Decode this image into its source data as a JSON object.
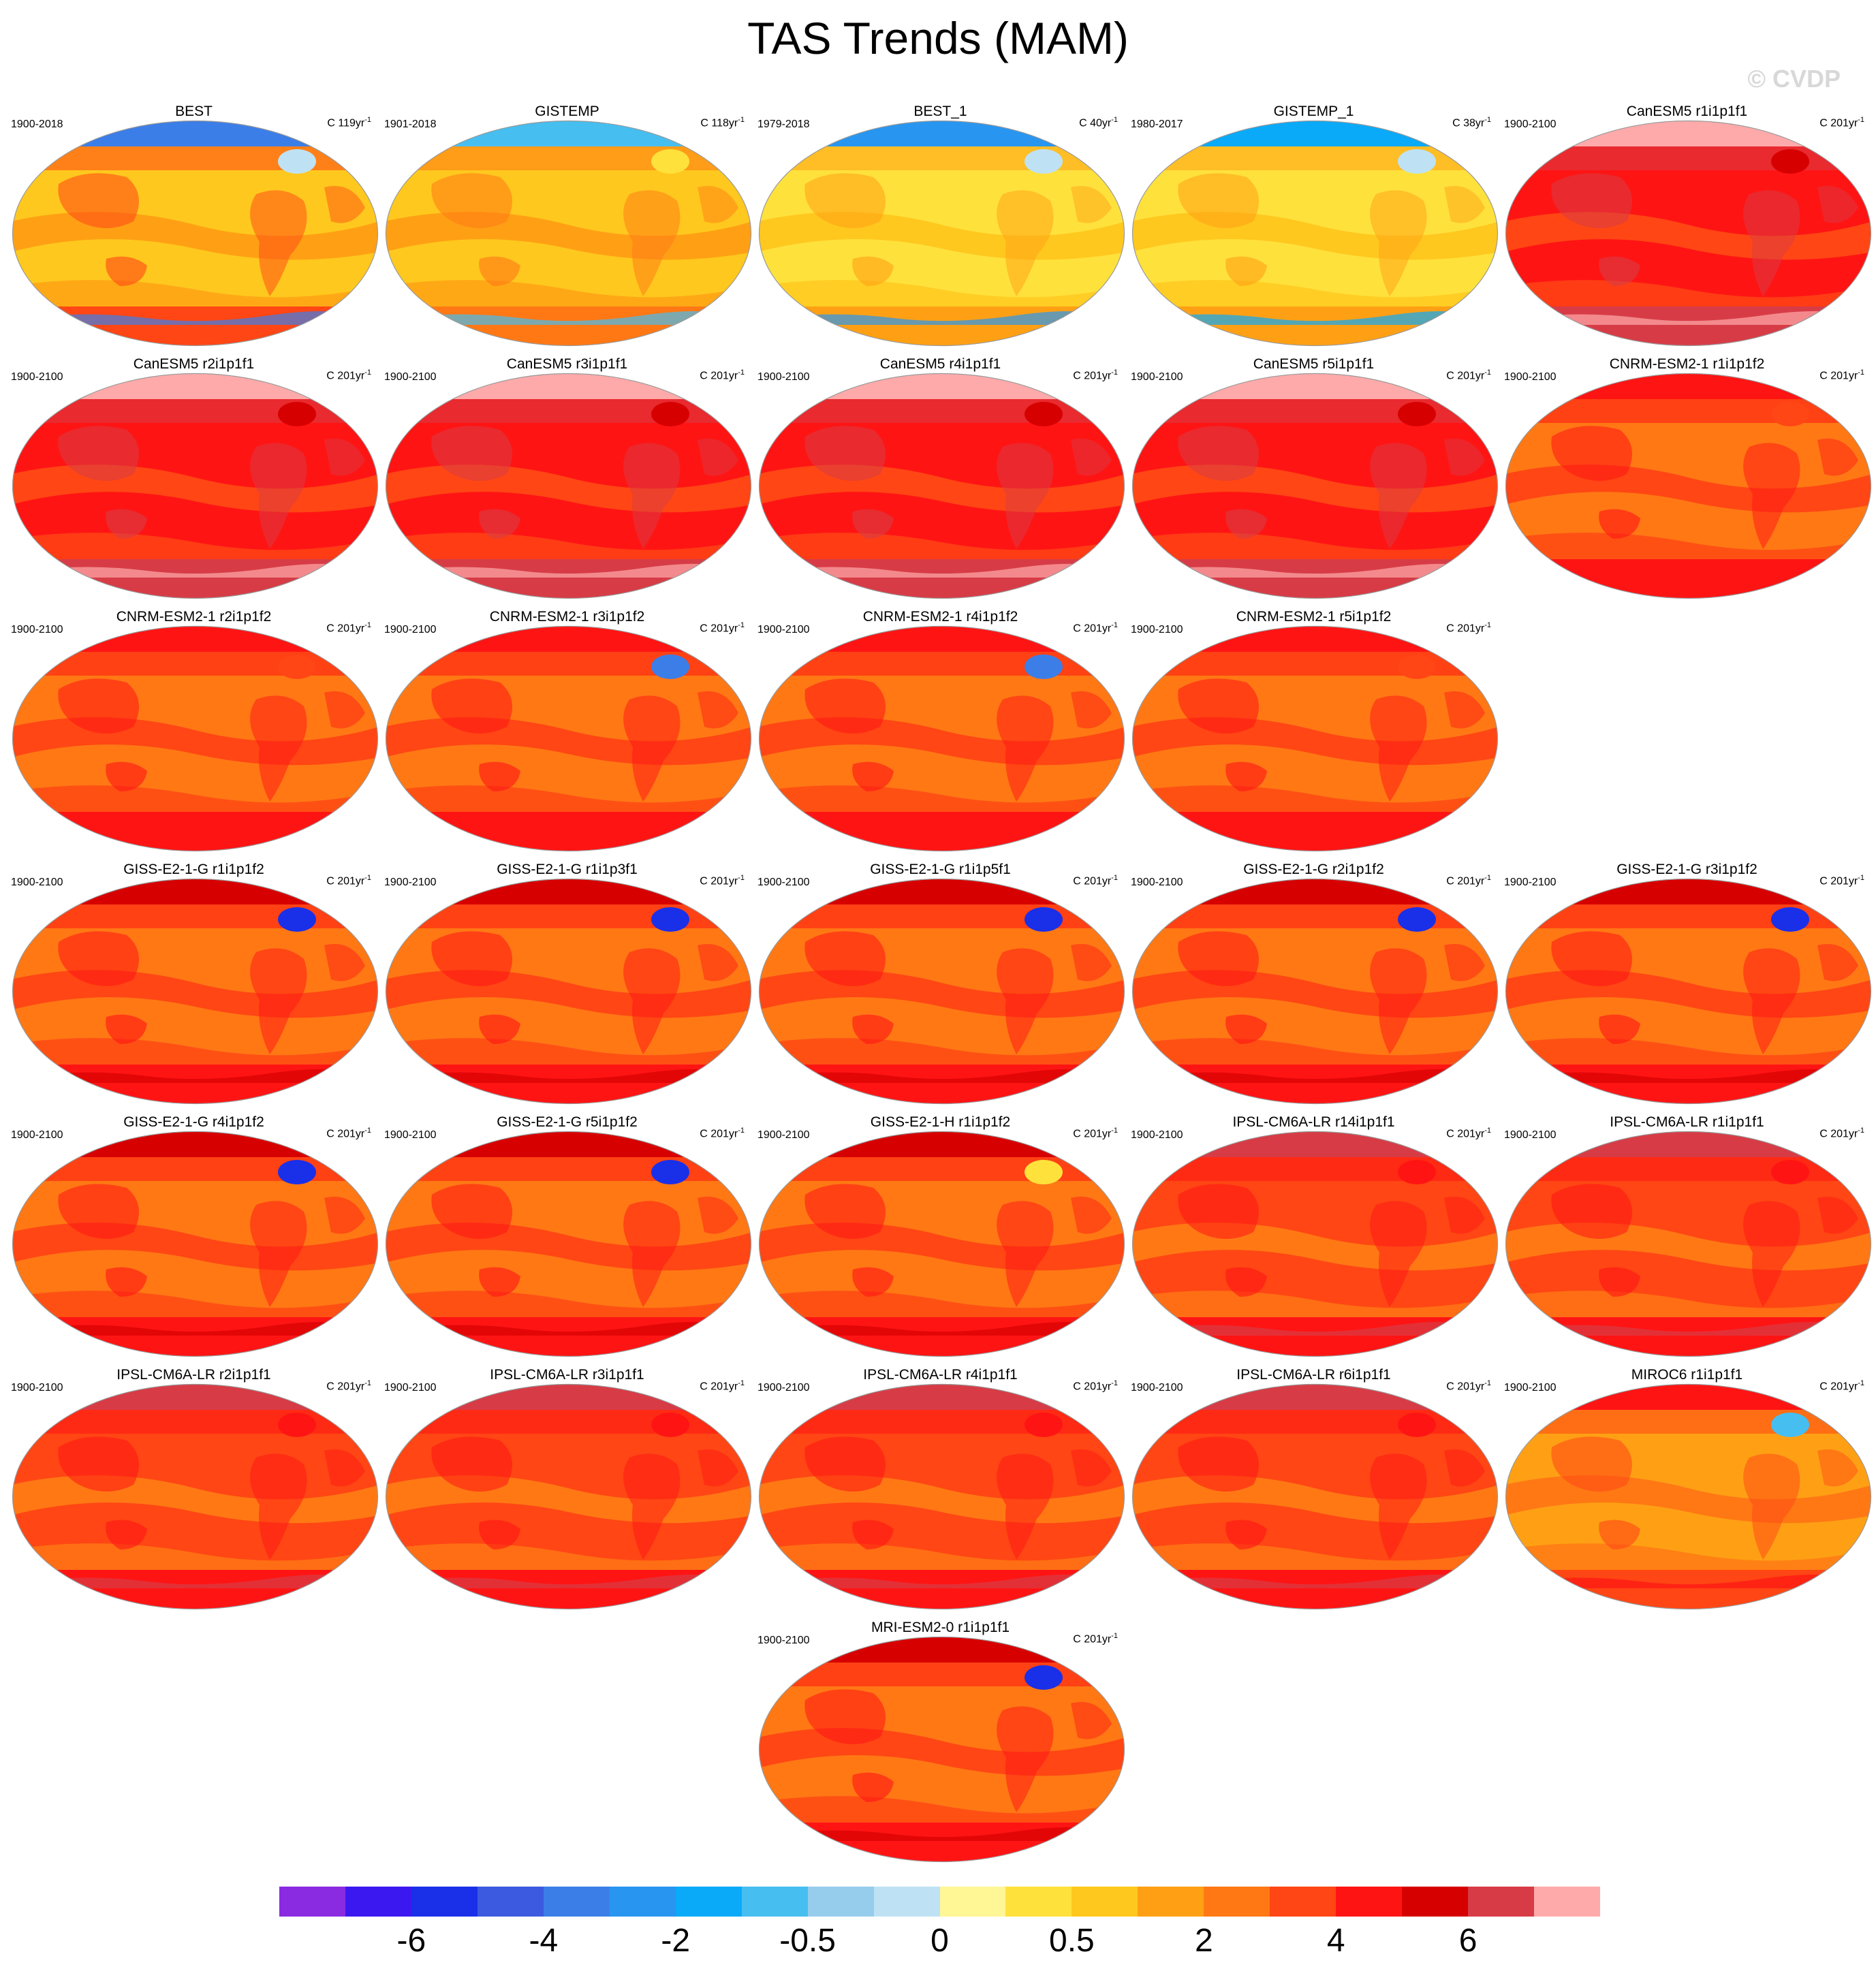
{
  "title": "TAS Trends (MAM)",
  "copyright": "© CVDP",
  "panels": [
    {
      "name": "BEST",
      "period": "1900-2018",
      "units": "C 119yr",
      "style": "obs1"
    },
    {
      "name": "GISTEMP",
      "period": "1901-2018",
      "units": "C 118yr",
      "style": "obs2"
    },
    {
      "name": "BEST_1",
      "period": "1979-2018",
      "units": "C 40yr",
      "style": "obs3"
    },
    {
      "name": "GISTEMP_1",
      "period": "1980-2017",
      "units": "C 38yr",
      "style": "obs4"
    },
    {
      "name": "CanESM5 r1i1p1f1",
      "period": "1900-2100",
      "units": "C 201yr",
      "style": "canesm"
    },
    {
      "name": "CanESM5 r2i1p1f1",
      "period": "1900-2100",
      "units": "C 201yr",
      "style": "canesm"
    },
    {
      "name": "CanESM5 r3i1p1f1",
      "period": "1900-2100",
      "units": "C 201yr",
      "style": "canesm"
    },
    {
      "name": "CanESM5 r4i1p1f1",
      "period": "1900-2100",
      "units": "C 201yr",
      "style": "canesm"
    },
    {
      "name": "CanESM5 r5i1p1f1",
      "period": "1900-2100",
      "units": "C 201yr",
      "style": "canesm"
    },
    {
      "name": "CNRM-ESM2-1 r1i1p1f2",
      "period": "1900-2100",
      "units": "C 201yr",
      "style": "cnrm"
    },
    {
      "name": "CNRM-ESM2-1 r2i1p1f2",
      "period": "1900-2100",
      "units": "C 201yr",
      "style": "cnrm"
    },
    {
      "name": "CNRM-ESM2-1 r3i1p1f2",
      "period": "1900-2100",
      "units": "C 201yr",
      "style": "cnrm-blue"
    },
    {
      "name": "CNRM-ESM2-1 r4i1p1f2",
      "period": "1900-2100",
      "units": "C 201yr",
      "style": "cnrm-blue"
    },
    {
      "name": "CNRM-ESM2-1 r5i1p1f2",
      "period": "1900-2100",
      "units": "C 201yr",
      "style": "cnrm"
    },
    {
      "name": "GISS-E2-1-G r1i1p1f2",
      "period": "1900-2100",
      "units": "C 201yr",
      "style": "giss"
    },
    {
      "name": "GISS-E2-1-G r1i1p3f1",
      "period": "1900-2100",
      "units": "C 201yr",
      "style": "giss"
    },
    {
      "name": "GISS-E2-1-G r1i1p5f1",
      "period": "1900-2100",
      "units": "C 201yr",
      "style": "giss"
    },
    {
      "name": "GISS-E2-1-G r2i1p1f2",
      "period": "1900-2100",
      "units": "C 201yr",
      "style": "giss"
    },
    {
      "name": "GISS-E2-1-G r3i1p1f2",
      "period": "1900-2100",
      "units": "C 201yr",
      "style": "giss"
    },
    {
      "name": "GISS-E2-1-G r4i1p1f2",
      "period": "1900-2100",
      "units": "C 201yr",
      "style": "giss"
    },
    {
      "name": "GISS-E2-1-G r5i1p1f2",
      "period": "1900-2100",
      "units": "C 201yr",
      "style": "giss"
    },
    {
      "name": "GISS-E2-1-H r1i1p1f2",
      "period": "1900-2100",
      "units": "C 201yr",
      "style": "giss-h"
    },
    {
      "name": "IPSL-CM6A-LR r14i1p1f1",
      "period": "1900-2100",
      "units": "C 201yr",
      "style": "ipsl"
    },
    {
      "name": "IPSL-CM6A-LR r1i1p1f1",
      "period": "1900-2100",
      "units": "C 201yr",
      "style": "ipsl"
    },
    {
      "name": "IPSL-CM6A-LR r2i1p1f1",
      "period": "1900-2100",
      "units": "C 201yr",
      "style": "ipsl"
    },
    {
      "name": "IPSL-CM6A-LR r3i1p1f1",
      "period": "1900-2100",
      "units": "C 201yr",
      "style": "ipsl"
    },
    {
      "name": "IPSL-CM6A-LR r4i1p1f1",
      "period": "1900-2100",
      "units": "C 201yr",
      "style": "ipsl"
    },
    {
      "name": "IPSL-CM6A-LR r6i1p1f1",
      "period": "1900-2100",
      "units": "C 201yr",
      "style": "ipsl"
    },
    {
      "name": "MIROC6 r1i1p1f1",
      "period": "1900-2100",
      "units": "C 201yr",
      "style": "miroc"
    },
    {
      "name": "MRI-ESM2-0 r1i1p1f1",
      "period": "1900-2100",
      "units": "C 201yr",
      "style": "mri"
    }
  ],
  "units_exponent": "-1",
  "colorbar": {
    "colors": [
      "#8a2be2",
      "#3c18f0",
      "#1a2fe8",
      "#3c5ae0",
      "#3c7ee8",
      "#2896f0",
      "#0aaaf8",
      "#46bef0",
      "#96ccec",
      "#bee2f4",
      "#fff696",
      "#ffe13c",
      "#ffc81e",
      "#ffa014",
      "#ff7814",
      "#ff4614",
      "#ff1414",
      "#d70000",
      "#d73c46",
      "#ffaaaa"
    ],
    "labels": [
      "-6",
      "-4",
      "-2",
      "-0.5",
      "0",
      "0.5",
      "2",
      "4",
      "6"
    ]
  }
}
